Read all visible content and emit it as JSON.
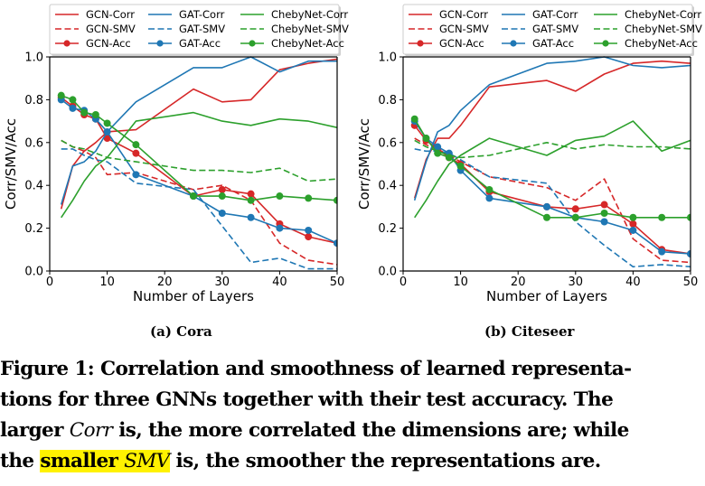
{
  "chart_data": [
    {
      "type": "line",
      "title": "",
      "subcaption": "(a) Cora",
      "xlabel": "Number of Layers",
      "ylabel": "Corr/SMV/Acc",
      "xlim": [
        0,
        50
      ],
      "ylim": [
        0.0,
        1.0
      ],
      "xticks": [
        0,
        10,
        20,
        30,
        40,
        50
      ],
      "yticks": [
        0.0,
        0.2,
        0.4,
        0.6,
        0.8,
        1.0
      ],
      "xtick_labels": [
        "0",
        "10",
        "20",
        "30",
        "40",
        "50"
      ],
      "ytick_labels": [
        "0.0",
        "0.2",
        "0.4",
        "0.6",
        "0.8",
        "1.0"
      ],
      "grid": false,
      "legend_position": "top",
      "x": [
        2,
        4,
        6,
        8,
        10,
        15,
        25,
        30,
        35,
        40,
        45,
        50
      ],
      "series": [
        {
          "name": "GCN-Corr",
          "color": "#d62728",
          "style": "solid",
          "marker": false,
          "values": [
            0.29,
            0.49,
            0.56,
            0.6,
            0.65,
            0.66,
            0.85,
            0.79,
            0.8,
            0.94,
            0.97,
            0.99
          ]
        },
        {
          "name": "GCN-SMV",
          "color": "#d62728",
          "style": "dashed",
          "marker": false,
          "values": [
            0.61,
            0.58,
            0.56,
            0.53,
            0.45,
            0.46,
            0.38,
            0.4,
            0.33,
            0.13,
            0.05,
            0.03
          ]
        },
        {
          "name": "GCN-Acc",
          "color": "#d62728",
          "style": "solid",
          "marker": true,
          "values": [
            0.81,
            0.77,
            0.73,
            0.71,
            0.62,
            0.55,
            0.35,
            0.38,
            0.36,
            0.22,
            0.16,
            0.13
          ]
        },
        {
          "name": "GAT-Corr",
          "color": "#1f77b4",
          "style": "solid",
          "marker": false,
          "values": [
            0.31,
            0.49,
            0.51,
            0.56,
            0.65,
            0.79,
            0.95,
            0.95,
            1.0,
            0.93,
            0.98,
            0.98
          ]
        },
        {
          "name": "GAT-SMV",
          "color": "#1f77b4",
          "style": "dashed",
          "marker": false,
          "values": [
            0.57,
            0.57,
            0.54,
            0.52,
            0.51,
            0.41,
            0.38,
            0.21,
            0.04,
            0.06,
            0.01,
            0.01
          ]
        },
        {
          "name": "GAT-Acc",
          "color": "#1f77b4",
          "style": "solid",
          "marker": true,
          "values": [
            0.8,
            0.76,
            0.75,
            0.71,
            0.65,
            0.45,
            0.35,
            0.27,
            0.25,
            0.2,
            0.19,
            0.13
          ]
        },
        {
          "name": "ChebyNet-Corr",
          "color": "#2ca02c",
          "style": "solid",
          "marker": false,
          "values": [
            0.25,
            0.33,
            0.42,
            0.49,
            0.53,
            0.7,
            0.74,
            0.7,
            0.68,
            0.71,
            0.7,
            0.67
          ]
        },
        {
          "name": "ChebyNet-SMV",
          "color": "#2ca02c",
          "style": "dashed",
          "marker": false,
          "values": [
            0.61,
            0.58,
            0.57,
            0.55,
            0.53,
            0.51,
            0.47,
            0.47,
            0.46,
            0.48,
            0.42,
            0.43
          ]
        },
        {
          "name": "ChebyNet-Acc",
          "color": "#2ca02c",
          "style": "solid",
          "marker": true,
          "values": [
            0.82,
            0.8,
            0.74,
            0.73,
            0.69,
            0.59,
            0.35,
            0.35,
            0.33,
            0.35,
            0.34,
            0.33
          ]
        }
      ]
    },
    {
      "type": "line",
      "title": "",
      "subcaption": "(b) Citeseer",
      "xlabel": "Number of Layers",
      "ylabel": "Corr/SMV/Acc",
      "xlim": [
        0,
        50
      ],
      "ylim": [
        0.0,
        1.0
      ],
      "xticks": [
        0,
        10,
        20,
        30,
        40,
        50
      ],
      "yticks": [
        0.0,
        0.2,
        0.4,
        0.6,
        0.8,
        1.0
      ],
      "xtick_labels": [
        "0",
        "10",
        "20",
        "30",
        "40",
        "50"
      ],
      "ytick_labels": [
        "0.0",
        "0.2",
        "0.4",
        "0.6",
        "0.8",
        "1.0"
      ],
      "grid": false,
      "legend_position": "top",
      "x": [
        2,
        4,
        6,
        8,
        10,
        15,
        25,
        30,
        35,
        40,
        45,
        50
      ],
      "series": [
        {
          "name": "GCN-Corr",
          "color": "#d62728",
          "style": "solid",
          "marker": false,
          "values": [
            0.34,
            0.52,
            0.62,
            0.62,
            0.68,
            0.86,
            0.89,
            0.84,
            0.92,
            0.97,
            0.98,
            0.97
          ]
        },
        {
          "name": "GCN-SMV",
          "color": "#d62728",
          "style": "dashed",
          "marker": false,
          "values": [
            0.62,
            0.59,
            0.57,
            0.54,
            0.51,
            0.44,
            0.39,
            0.33,
            0.43,
            0.15,
            0.05,
            0.04
          ]
        },
        {
          "name": "GCN-Acc",
          "color": "#d62728",
          "style": "solid",
          "marker": true,
          "values": [
            0.68,
            0.61,
            0.57,
            0.53,
            0.5,
            0.37,
            0.3,
            0.29,
            0.31,
            0.22,
            0.1,
            0.08
          ]
        },
        {
          "name": "GAT-Corr",
          "color": "#1f77b4",
          "style": "solid",
          "marker": false,
          "values": [
            0.33,
            0.51,
            0.65,
            0.68,
            0.75,
            0.87,
            0.97,
            0.98,
            1.0,
            0.96,
            0.95,
            0.96
          ]
        },
        {
          "name": "GAT-SMV",
          "color": "#1f77b4",
          "style": "dashed",
          "marker": false,
          "values": [
            0.57,
            0.56,
            0.56,
            0.55,
            0.52,
            0.44,
            0.41,
            0.23,
            0.12,
            0.02,
            0.03,
            0.02
          ]
        },
        {
          "name": "GAT-Acc",
          "color": "#1f77b4",
          "style": "solid",
          "marker": true,
          "values": [
            0.7,
            0.62,
            0.58,
            0.55,
            0.47,
            0.34,
            0.3,
            0.25,
            0.23,
            0.19,
            0.09,
            0.08
          ]
        },
        {
          "name": "ChebyNet-Corr",
          "color": "#2ca02c",
          "style": "solid",
          "marker": false,
          "values": [
            0.25,
            0.33,
            0.42,
            0.5,
            0.54,
            0.62,
            0.54,
            0.61,
            0.63,
            0.7,
            0.56,
            0.61
          ]
        },
        {
          "name": "ChebyNet-SMV",
          "color": "#2ca02c",
          "style": "dashed",
          "marker": false,
          "values": [
            0.61,
            0.58,
            0.56,
            0.54,
            0.53,
            0.54,
            0.6,
            0.57,
            0.59,
            0.58,
            0.58,
            0.57
          ]
        },
        {
          "name": "ChebyNet-Acc",
          "color": "#2ca02c",
          "style": "solid",
          "marker": true,
          "values": [
            0.71,
            0.62,
            0.55,
            0.53,
            0.49,
            0.38,
            0.25,
            0.25,
            0.27,
            0.25,
            0.25,
            0.25
          ]
        }
      ]
    }
  ],
  "caption": {
    "label": "Figure 1:",
    "line1": "Figure 1: Correlation and smoothness of learned representa-",
    "line2": "tions for three GNNs together with their test accuracy. The",
    "line3_a": "larger ",
    "line3_it": "Corr",
    "line3_b": " is, the more correlated the dimensions are; while",
    "line4_a": "the ",
    "line4_hl": "smaller ",
    "line4_hl_it": "SMV",
    "line4_b": " is, the smoother the representations are.",
    "highlight_color": "#fff200"
  }
}
